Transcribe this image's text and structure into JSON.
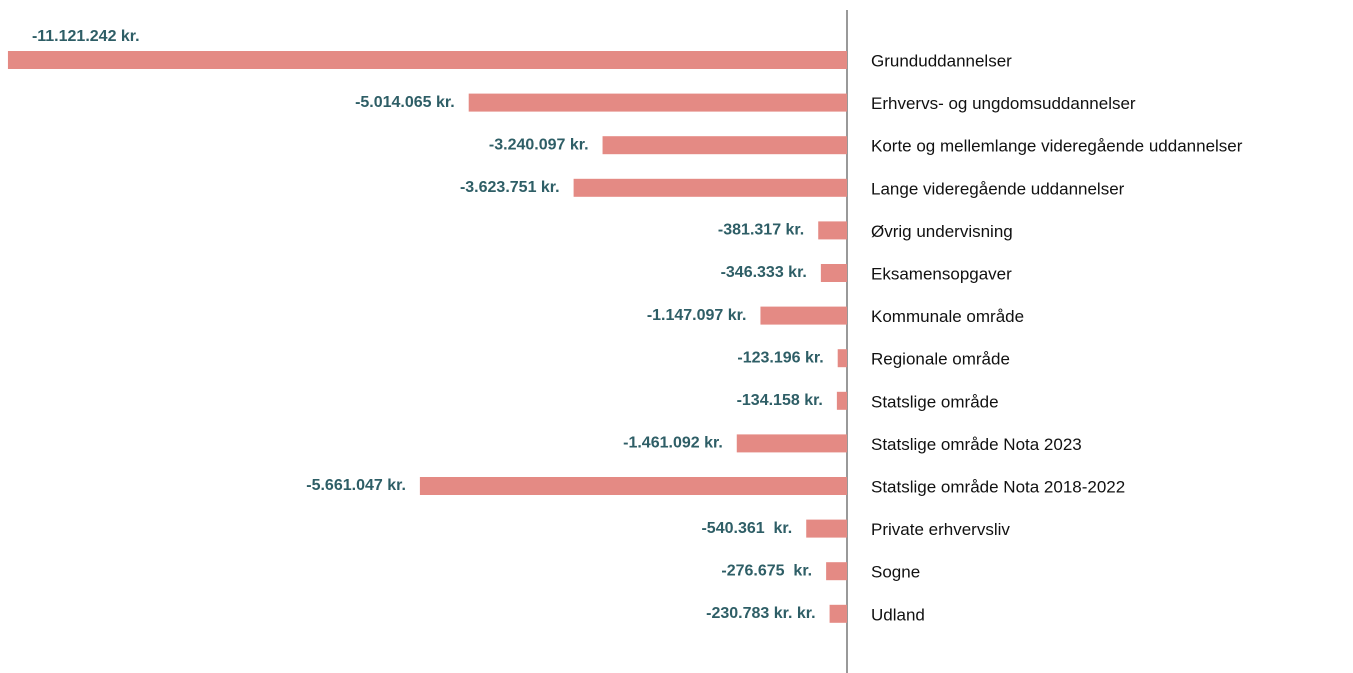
{
  "chart_data": {
    "type": "bar",
    "orientation": "horizontal",
    "categories": [
      "Grunduddannelser",
      "Erhvervs- og ungdomsuddannelser",
      "Korte og mellemlange videregående uddannelser",
      "Lange videregående uddannelser",
      "Øvrig undervisning",
      "Eksamensopgaver",
      "Kommunale område",
      "Regionale område",
      "Statslige område",
      "Statslige område Nota 2023",
      "Statslige område Nota 2018-2022",
      "Private erhvervsliv",
      "Sogne",
      "Udland"
    ],
    "values": [
      -11121242,
      -5014065,
      -3240097,
      -3623751,
      -381317,
      -346333,
      -1147097,
      -123196,
      -134158,
      -1461092,
      -5661047,
      -540361,
      -276675,
      -230783
    ],
    "value_labels": [
      "-11.121.242 kr.",
      "-5.014.065 kr.",
      "-3.240.097 kr.",
      "-3.623.751 kr.",
      "-381.317 kr.",
      "-346.333 kr.",
      "-1.147.097 kr.",
      "-123.196 kr.",
      "-134.158 kr.",
      "-1.461.092 kr.",
      "-5.661.047 kr.",
      "-540.361  kr.",
      "-276.675  kr.",
      "-230.783 kr. kr."
    ],
    "color": "#e48a84",
    "label_color": "#2e5e66",
    "xlim": [
      -11200000,
      0
    ]
  }
}
